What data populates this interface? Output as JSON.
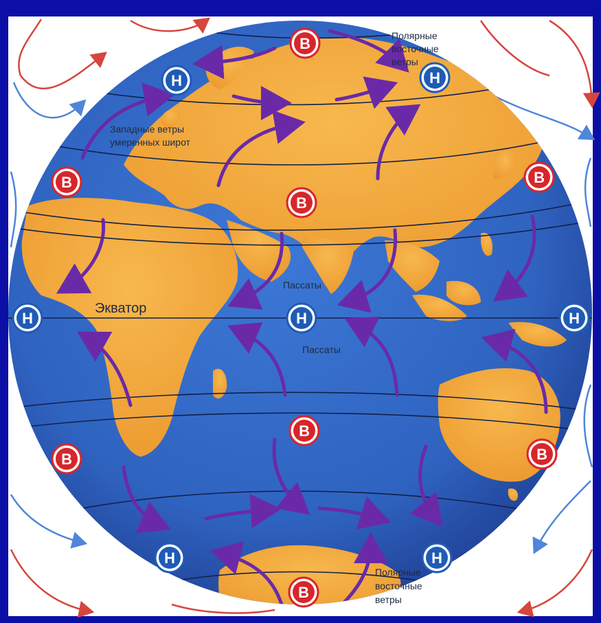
{
  "labels": {
    "polar_east_north": [
      "Полярные",
      "восточные",
      "ветры"
    ],
    "westerlies": [
      "Западные ветры",
      "умеренных широт"
    ],
    "trade_winds_north": "Пассаты",
    "equator": "Экватор",
    "trade_winds_south": "Пассаты",
    "polar_east_south": [
      "Полярные",
      "восточные",
      "ветры"
    ]
  },
  "pressure_symbols": {
    "high": "В",
    "low": "Н"
  },
  "colors": {
    "frame": "#0b0fa6",
    "ocean": "#2f63c0",
    "land": "#f2a53a",
    "latitude_lines": "#12204a",
    "wind_arrows": "#6a2aa8",
    "high_badge": "#d7262b",
    "low_badge": "#1f5bb6",
    "cell_red": "#d6463d",
    "cell_blue": "#4f86d8"
  }
}
